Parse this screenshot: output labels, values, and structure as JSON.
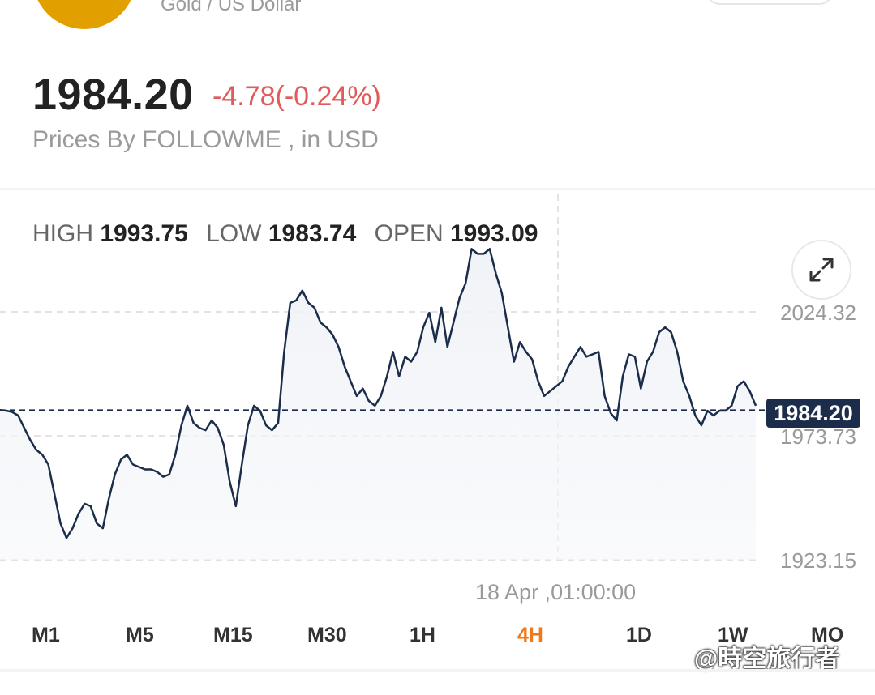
{
  "header": {
    "subtitle": "Gold / US Dollar",
    "price": "1984.20",
    "change": "-4.78(-0.24%)",
    "source_text": "Prices By FOLLOWME , in USD",
    "logo_color": "#e2a000"
  },
  "ohlc": {
    "high_label": "HIGH",
    "high_value": "1993.75",
    "low_label": "LOW",
    "low_value": "1983.74",
    "open_label": "OPEN",
    "open_value": "1993.09"
  },
  "chart_data": {
    "type": "line",
    "y_ticks": [
      "2024.32",
      "1973.73",
      "1923.15"
    ],
    "y_range": [
      1923.15,
      2024.32
    ],
    "current_price": "1984.20",
    "crosshair_time": "18 Apr ,01:00:00",
    "line_color": "#1b2d4a",
    "y": [
      1984.2,
      1984.0,
      1983.5,
      1982.0,
      1977.0,
      1972.0,
      1968.0,
      1966.0,
      1962.0,
      1950.0,
      1938.0,
      1932.0,
      1936.0,
      1942.0,
      1946.0,
      1945.0,
      1938.0,
      1936.0,
      1948.0,
      1958.0,
      1964.0,
      1966.0,
      1962.0,
      1961.0,
      1960.0,
      1960.0,
      1959.0,
      1957.0,
      1958.0,
      1966.0,
      1978.0,
      1986.0,
      1979.0,
      1977.0,
      1976.0,
      1980.0,
      1977.0,
      1970.0,
      1955.0,
      1945.0,
      1962.0,
      1978.0,
      1986.0,
      1984.0,
      1978.0,
      1976.0,
      1979.0,
      2008.0,
      2028.0,
      2029.0,
      2033.0,
      2028.0,
      2026.0,
      2020.0,
      2018.0,
      2015.0,
      2010.0,
      2002.0,
      1996.0,
      1990.0,
      1993.0,
      1988.0,
      1986.0,
      1990.0,
      1998.0,
      2008.0,
      1998.0,
      2006.0,
      2004.0,
      2008.0,
      2018.0,
      2024.0,
      2012.0,
      2026.0,
      2010.0,
      2020.0,
      2030.0,
      2036.0,
      2050.0,
      2048.0,
      2048.0,
      2050.0,
      2040.0,
      2032.0,
      2018.0,
      2004.0,
      2012.0,
      2008.0,
      2005.0,
      1996.0,
      1990.0,
      1992.0,
      1994.0,
      1996.0,
      2002.0,
      2006.0,
      2010.0,
      2006.0,
      2007.0,
      2008.0,
      1990.0,
      1983.0,
      1980.0,
      1998.0,
      2007.0,
      2006.0,
      1993.0,
      2004.0,
      2008.0,
      2016.0,
      2018.0,
      2016.0,
      2008.0,
      1996.0,
      1990.0,
      1982.0,
      1978.0,
      1984.0,
      1982.0,
      1984.0,
      1984.0,
      1986.0,
      1994.0,
      1996.0,
      1992.0,
      1986.0
    ],
    "baseline": 1984.2
  },
  "tabs": [
    {
      "label": "M1",
      "active": false
    },
    {
      "label": "M5",
      "active": false
    },
    {
      "label": "M15",
      "active": false
    },
    {
      "label": "M30",
      "active": false
    },
    {
      "label": "1H",
      "active": false
    },
    {
      "label": "4H",
      "active": true
    },
    {
      "label": "1D",
      "active": false
    },
    {
      "label": "1W",
      "active": false
    },
    {
      "label": "MO",
      "active": false
    }
  ],
  "watermark": "@時空旅行者",
  "colors": {
    "negative": "#e25b5b",
    "active_tab": "#f07a1a",
    "tag_bg": "#1b2d4a"
  }
}
